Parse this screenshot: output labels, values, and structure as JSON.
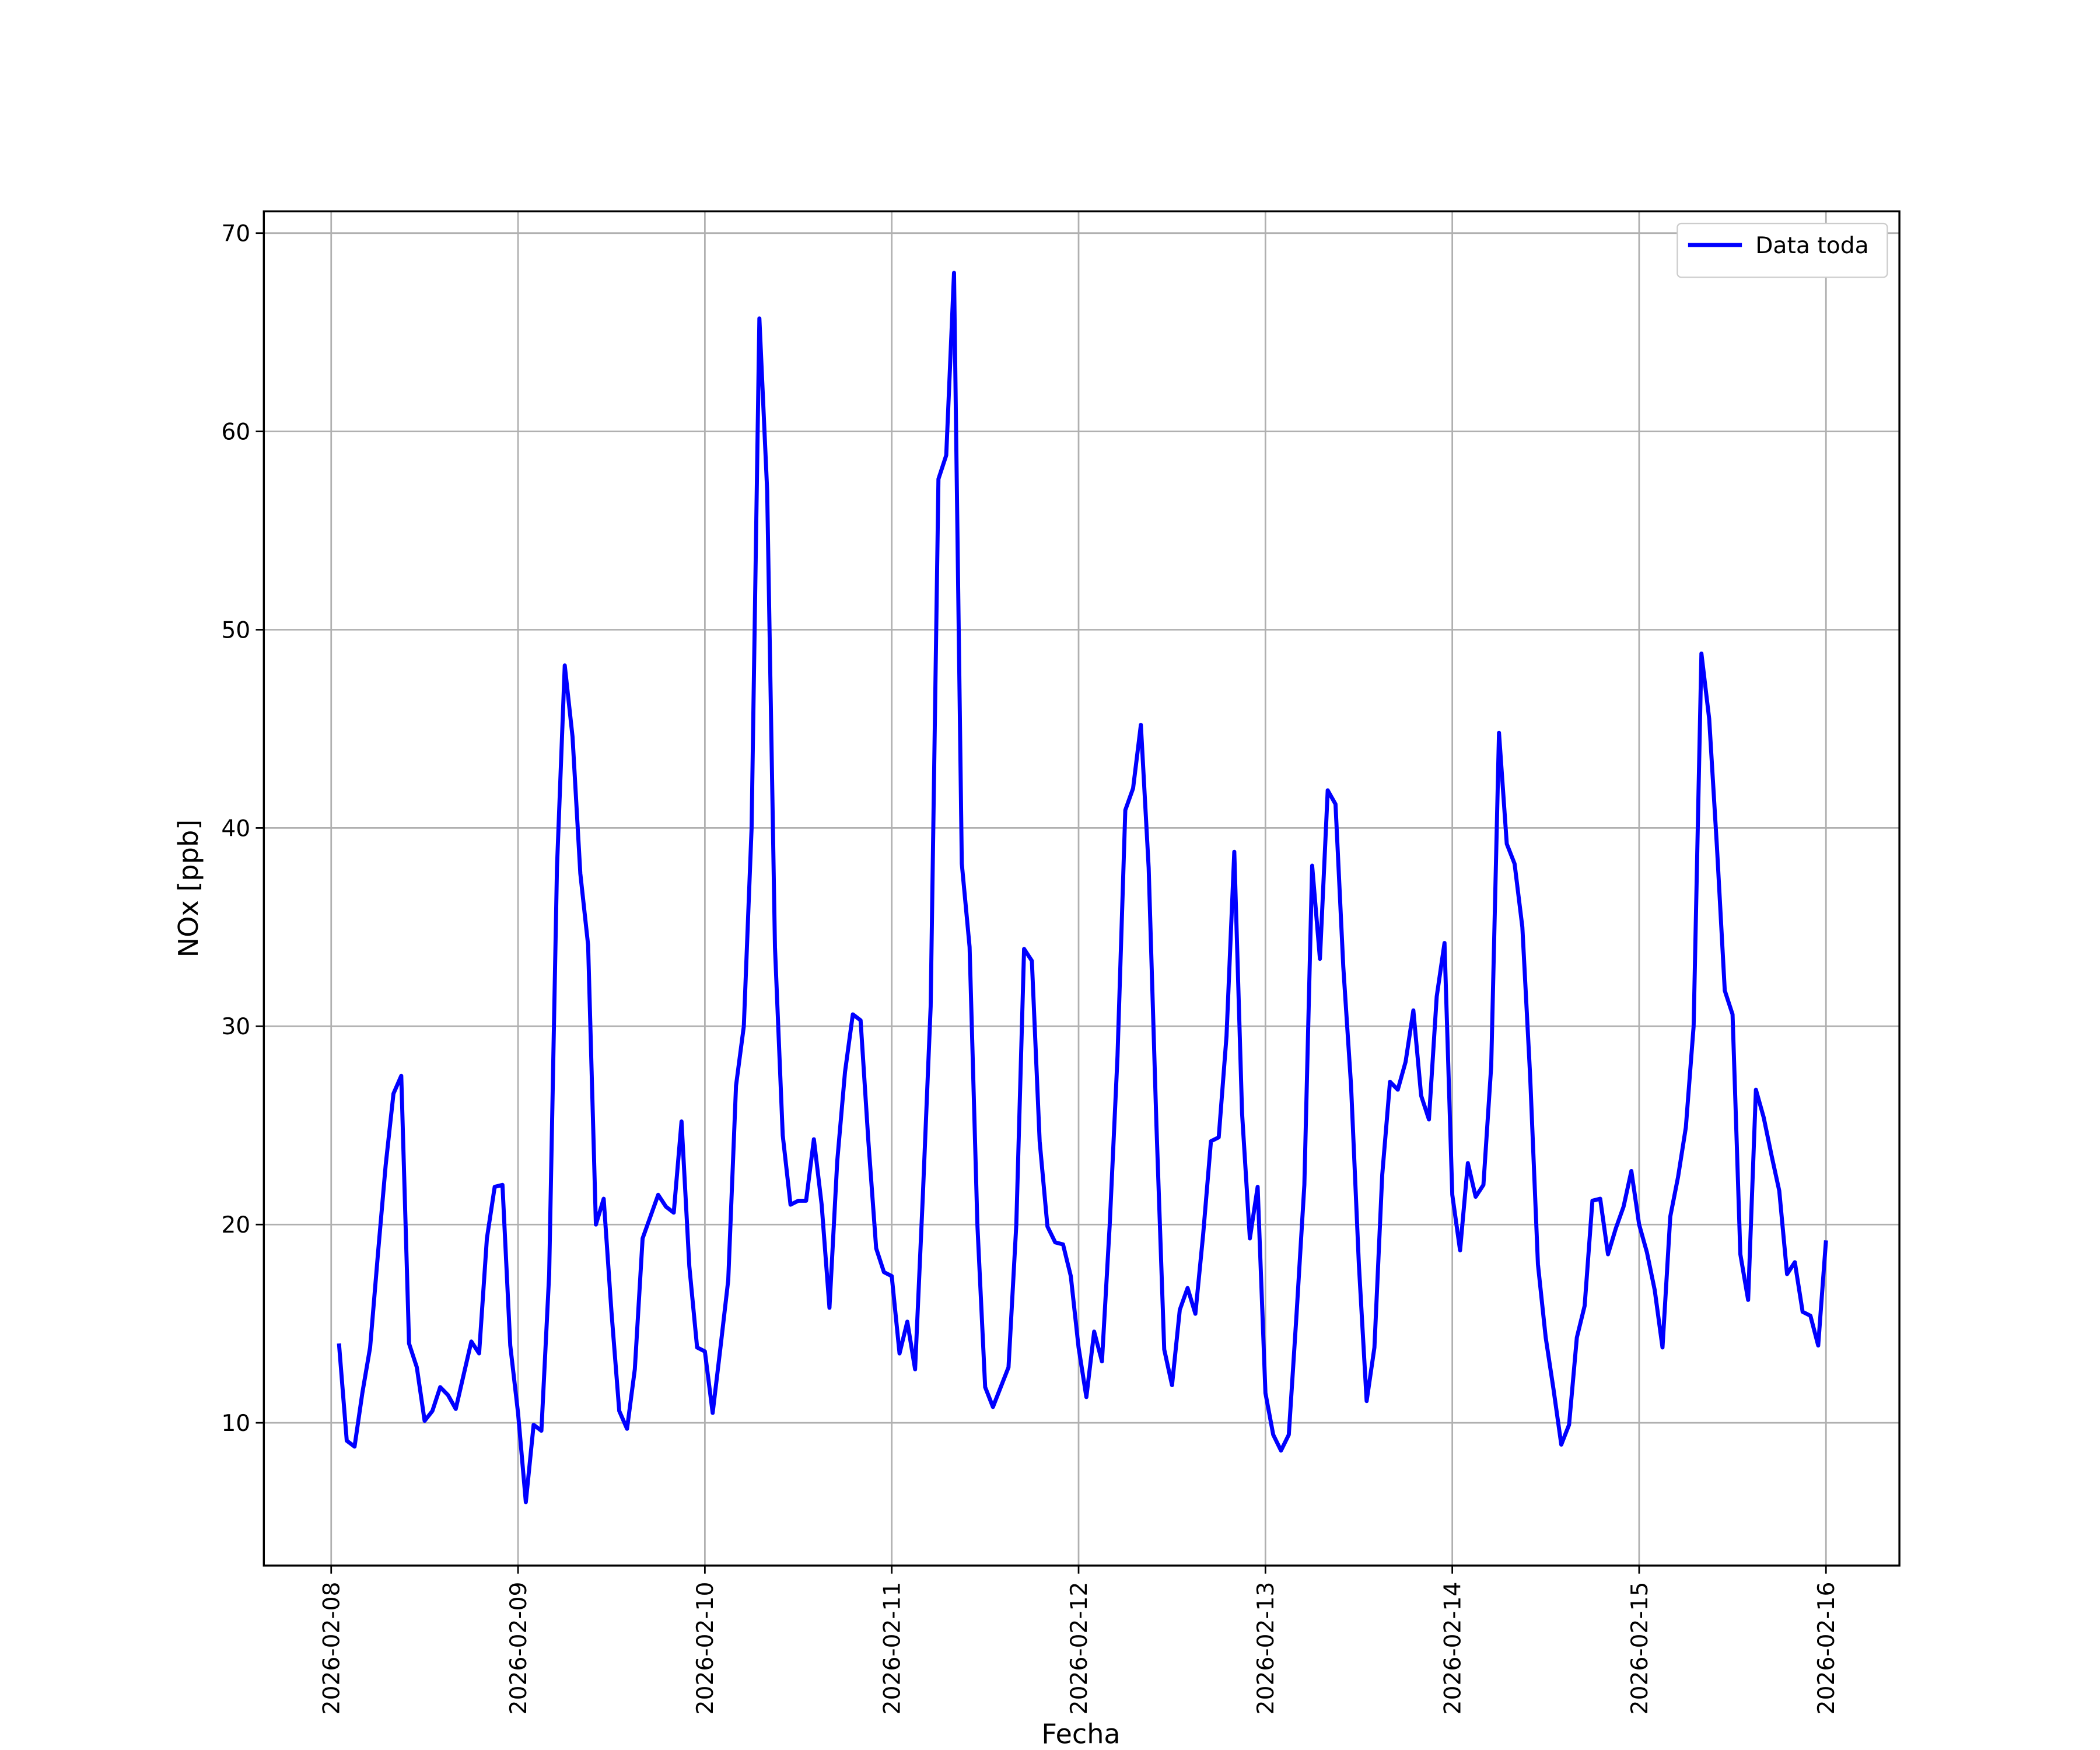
{
  "chart_data": {
    "type": "line",
    "xlabel": "Fecha",
    "ylabel": "NOx [ppb]",
    "grid": true,
    "legend": "upper right",
    "xlim": [
      "2026-02-07 15:21",
      "2026-02-16 09:26"
    ],
    "xticks": [
      "2026-02-08",
      "2026-02-09",
      "2026-02-10",
      "2026-02-11",
      "2026-02-12",
      "2026-02-13",
      "2026-02-14",
      "2026-02-15",
      "2026-02-16"
    ],
    "ylim": [
      2.8,
      71.1
    ],
    "yticks": [
      10,
      20,
      30,
      40,
      50,
      60,
      70
    ],
    "x": [
      "2026-02-08 01:00",
      "2026-02-08 02:00",
      "2026-02-08 03:00",
      "2026-02-08 04:00",
      "2026-02-08 05:00",
      "2026-02-08 06:00",
      "2026-02-08 07:00",
      "2026-02-08 08:00",
      "2026-02-08 09:00",
      "2026-02-08 10:00",
      "2026-02-08 11:00",
      "2026-02-08 12:00",
      "2026-02-08 13:00",
      "2026-02-08 14:00",
      "2026-02-08 15:00",
      "2026-02-08 16:00",
      "2026-02-08 17:00",
      "2026-02-08 18:00",
      "2026-02-08 19:00",
      "2026-02-08 20:00",
      "2026-02-08 21:00",
      "2026-02-08 22:00",
      "2026-02-08 23:00",
      "2026-02-09 00:00",
      "2026-02-09 01:00",
      "2026-02-09 02:00",
      "2026-02-09 03:00",
      "2026-02-09 04:00",
      "2026-02-09 05:00",
      "2026-02-09 06:00",
      "2026-02-09 07:00",
      "2026-02-09 08:00",
      "2026-02-09 09:00",
      "2026-02-09 10:00",
      "2026-02-09 11:00",
      "2026-02-09 12:00",
      "2026-02-09 13:00",
      "2026-02-09 14:00",
      "2026-02-09 15:00",
      "2026-02-09 16:00",
      "2026-02-09 17:00",
      "2026-02-09 18:00",
      "2026-02-09 19:00",
      "2026-02-09 20:00",
      "2026-02-09 21:00",
      "2026-02-09 22:00",
      "2026-02-09 23:00",
      "2026-02-10 00:00",
      "2026-02-10 01:00",
      "2026-02-10 02:00",
      "2026-02-10 03:00",
      "2026-02-10 04:00",
      "2026-02-10 05:00",
      "2026-02-10 06:00",
      "2026-02-10 07:00",
      "2026-02-10 08:00",
      "2026-02-10 09:00",
      "2026-02-10 10:00",
      "2026-02-10 11:00",
      "2026-02-10 12:00",
      "2026-02-10 13:00",
      "2026-02-10 14:00",
      "2026-02-10 15:00",
      "2026-02-10 16:00",
      "2026-02-10 17:00",
      "2026-02-10 18:00",
      "2026-02-10 19:00",
      "2026-02-10 20:00",
      "2026-02-10 21:00",
      "2026-02-10 22:00",
      "2026-02-10 23:00",
      "2026-02-11 00:00",
      "2026-02-11 01:00",
      "2026-02-11 02:00",
      "2026-02-11 03:00",
      "2026-02-11 04:00",
      "2026-02-11 05:00",
      "2026-02-11 06:00",
      "2026-02-11 07:00",
      "2026-02-11 08:00",
      "2026-02-11 09:00",
      "2026-02-11 10:00",
      "2026-02-11 11:00",
      "2026-02-11 12:00",
      "2026-02-11 13:00",
      "2026-02-11 14:00",
      "2026-02-11 15:00",
      "2026-02-11 16:00",
      "2026-02-11 17:00",
      "2026-02-11 18:00",
      "2026-02-11 19:00",
      "2026-02-11 20:00",
      "2026-02-11 21:00",
      "2026-02-11 22:00",
      "2026-02-11 23:00",
      "2026-02-12 00:00",
      "2026-02-12 01:00",
      "2026-02-12 02:00",
      "2026-02-12 03:00",
      "2026-02-12 04:00",
      "2026-02-12 05:00",
      "2026-02-12 06:00",
      "2026-02-12 07:00",
      "2026-02-12 08:00",
      "2026-02-12 09:00",
      "2026-02-12 10:00",
      "2026-02-12 11:00",
      "2026-02-12 12:00",
      "2026-02-12 13:00",
      "2026-02-12 14:00",
      "2026-02-12 15:00",
      "2026-02-12 16:00",
      "2026-02-12 17:00",
      "2026-02-12 18:00",
      "2026-02-12 19:00",
      "2026-02-12 20:00",
      "2026-02-12 21:00",
      "2026-02-12 22:00",
      "2026-02-12 23:00",
      "2026-02-13 00:00",
      "2026-02-13 01:00",
      "2026-02-13 02:00",
      "2026-02-13 03:00",
      "2026-02-13 04:00",
      "2026-02-13 05:00",
      "2026-02-13 06:00",
      "2026-02-13 07:00",
      "2026-02-13 08:00",
      "2026-02-13 09:00",
      "2026-02-13 10:00",
      "2026-02-13 11:00",
      "2026-02-13 12:00",
      "2026-02-13 13:00",
      "2026-02-13 14:00",
      "2026-02-13 15:00",
      "2026-02-13 16:00",
      "2026-02-13 17:00",
      "2026-02-13 18:00",
      "2026-02-13 19:00",
      "2026-02-13 20:00",
      "2026-02-13 21:00",
      "2026-02-13 22:00",
      "2026-02-13 23:00",
      "2026-02-14 00:00",
      "2026-02-14 01:00",
      "2026-02-14 02:00",
      "2026-02-14 03:00",
      "2026-02-14 04:00",
      "2026-02-14 05:00",
      "2026-02-14 06:00",
      "2026-02-14 07:00",
      "2026-02-14 08:00",
      "2026-02-14 09:00",
      "2026-02-14 10:00",
      "2026-02-14 11:00",
      "2026-02-14 12:00",
      "2026-02-14 13:00",
      "2026-02-14 14:00",
      "2026-02-14 15:00",
      "2026-02-14 16:00",
      "2026-02-14 17:00",
      "2026-02-14 18:00",
      "2026-02-14 19:00",
      "2026-02-14 20:00",
      "2026-02-14 21:00",
      "2026-02-14 22:00",
      "2026-02-14 23:00",
      "2026-02-15 00:00",
      "2026-02-15 01:00",
      "2026-02-15 02:00",
      "2026-02-15 03:00",
      "2026-02-15 04:00",
      "2026-02-15 05:00",
      "2026-02-15 06:00",
      "2026-02-15 07:00",
      "2026-02-15 08:00",
      "2026-02-15 09:00",
      "2026-02-15 10:00",
      "2026-02-15 11:00",
      "2026-02-15 12:00",
      "2026-02-15 13:00",
      "2026-02-15 14:00",
      "2026-02-15 15:00",
      "2026-02-15 16:00",
      "2026-02-15 17:00",
      "2026-02-15 18:00",
      "2026-02-15 19:00",
      "2026-02-15 20:00",
      "2026-02-15 21:00",
      "2026-02-15 22:00",
      "2026-02-15 23:00",
      "2026-02-16 00:00"
    ],
    "series": [
      {
        "name": "Data toda",
        "color": "#0000ff",
        "values": [
          14.0,
          9.1,
          8.8,
          11.5,
          13.8,
          18.5,
          23,
          26.6,
          27.5,
          14,
          12.8,
          10.1,
          10.6,
          11.8,
          11.4,
          10.7,
          12.4,
          14.1,
          13.5,
          19.3,
          21.9,
          22,
          13.9,
          10.5,
          6.0,
          9.9,
          9.6,
          17.5,
          38,
          48.2,
          44.6,
          37.7,
          34.1,
          20,
          21.3,
          15.6,
          10.6,
          9.7,
          12.7,
          19.3,
          20.4,
          21.5,
          20.9,
          20.6,
          25.2,
          17.9,
          13.8,
          13.6,
          10.5,
          13.8,
          17.2,
          27,
          30,
          40,
          65.7,
          57,
          34,
          24.5,
          21,
          21.2,
          21.2,
          24.3,
          21,
          15.8,
          23.2,
          27.7,
          30.6,
          30.3,
          24.2,
          18.8,
          17.6,
          17.4,
          13.5,
          15.1,
          12.7,
          21.5,
          31,
          57.6,
          58.8,
          68,
          38.2,
          34,
          20,
          11.8,
          10.8,
          11.8,
          12.8,
          20,
          33.9,
          33.3,
          24.2,
          19.9,
          19.1,
          19,
          17.4,
          13.8,
          11.3,
          14.6,
          13.1,
          20,
          28.5,
          40.9,
          42,
          45.2,
          38,
          25,
          13.7,
          11.9,
          15.7,
          16.8,
          15.5,
          19.5,
          24.2,
          24.4,
          29.5,
          38.8,
          25.6,
          19.3,
          21.9,
          11.5,
          9.4,
          8.6,
          9.4,
          15.5,
          22,
          38.1,
          33.4,
          41.9,
          41.2,
          33,
          27,
          18,
          11.1,
          13.8,
          22.5,
          27.2,
          26.8,
          28.2,
          30.8,
          26.5,
          25.3,
          31.5,
          34.2,
          21.5,
          18.7,
          23.1,
          21.4,
          22,
          28,
          44.8,
          39.2,
          38.2,
          35,
          27.5,
          18,
          14.3,
          11.7,
          8.9,
          9.9,
          14.3,
          15.9,
          21.2,
          21.3,
          18.5,
          19.8,
          20.9,
          22.7,
          20,
          18.6,
          16.7,
          13.8,
          20.4,
          22.4,
          24.9,
          30,
          48.8,
          45.5,
          39,
          31.8,
          30.6,
          18.5,
          16.2,
          26.8,
          25.4,
          23.5,
          21.7,
          17.5,
          18.1,
          15.6,
          15.4,
          13.9,
          19.2
        ]
      }
    ]
  }
}
